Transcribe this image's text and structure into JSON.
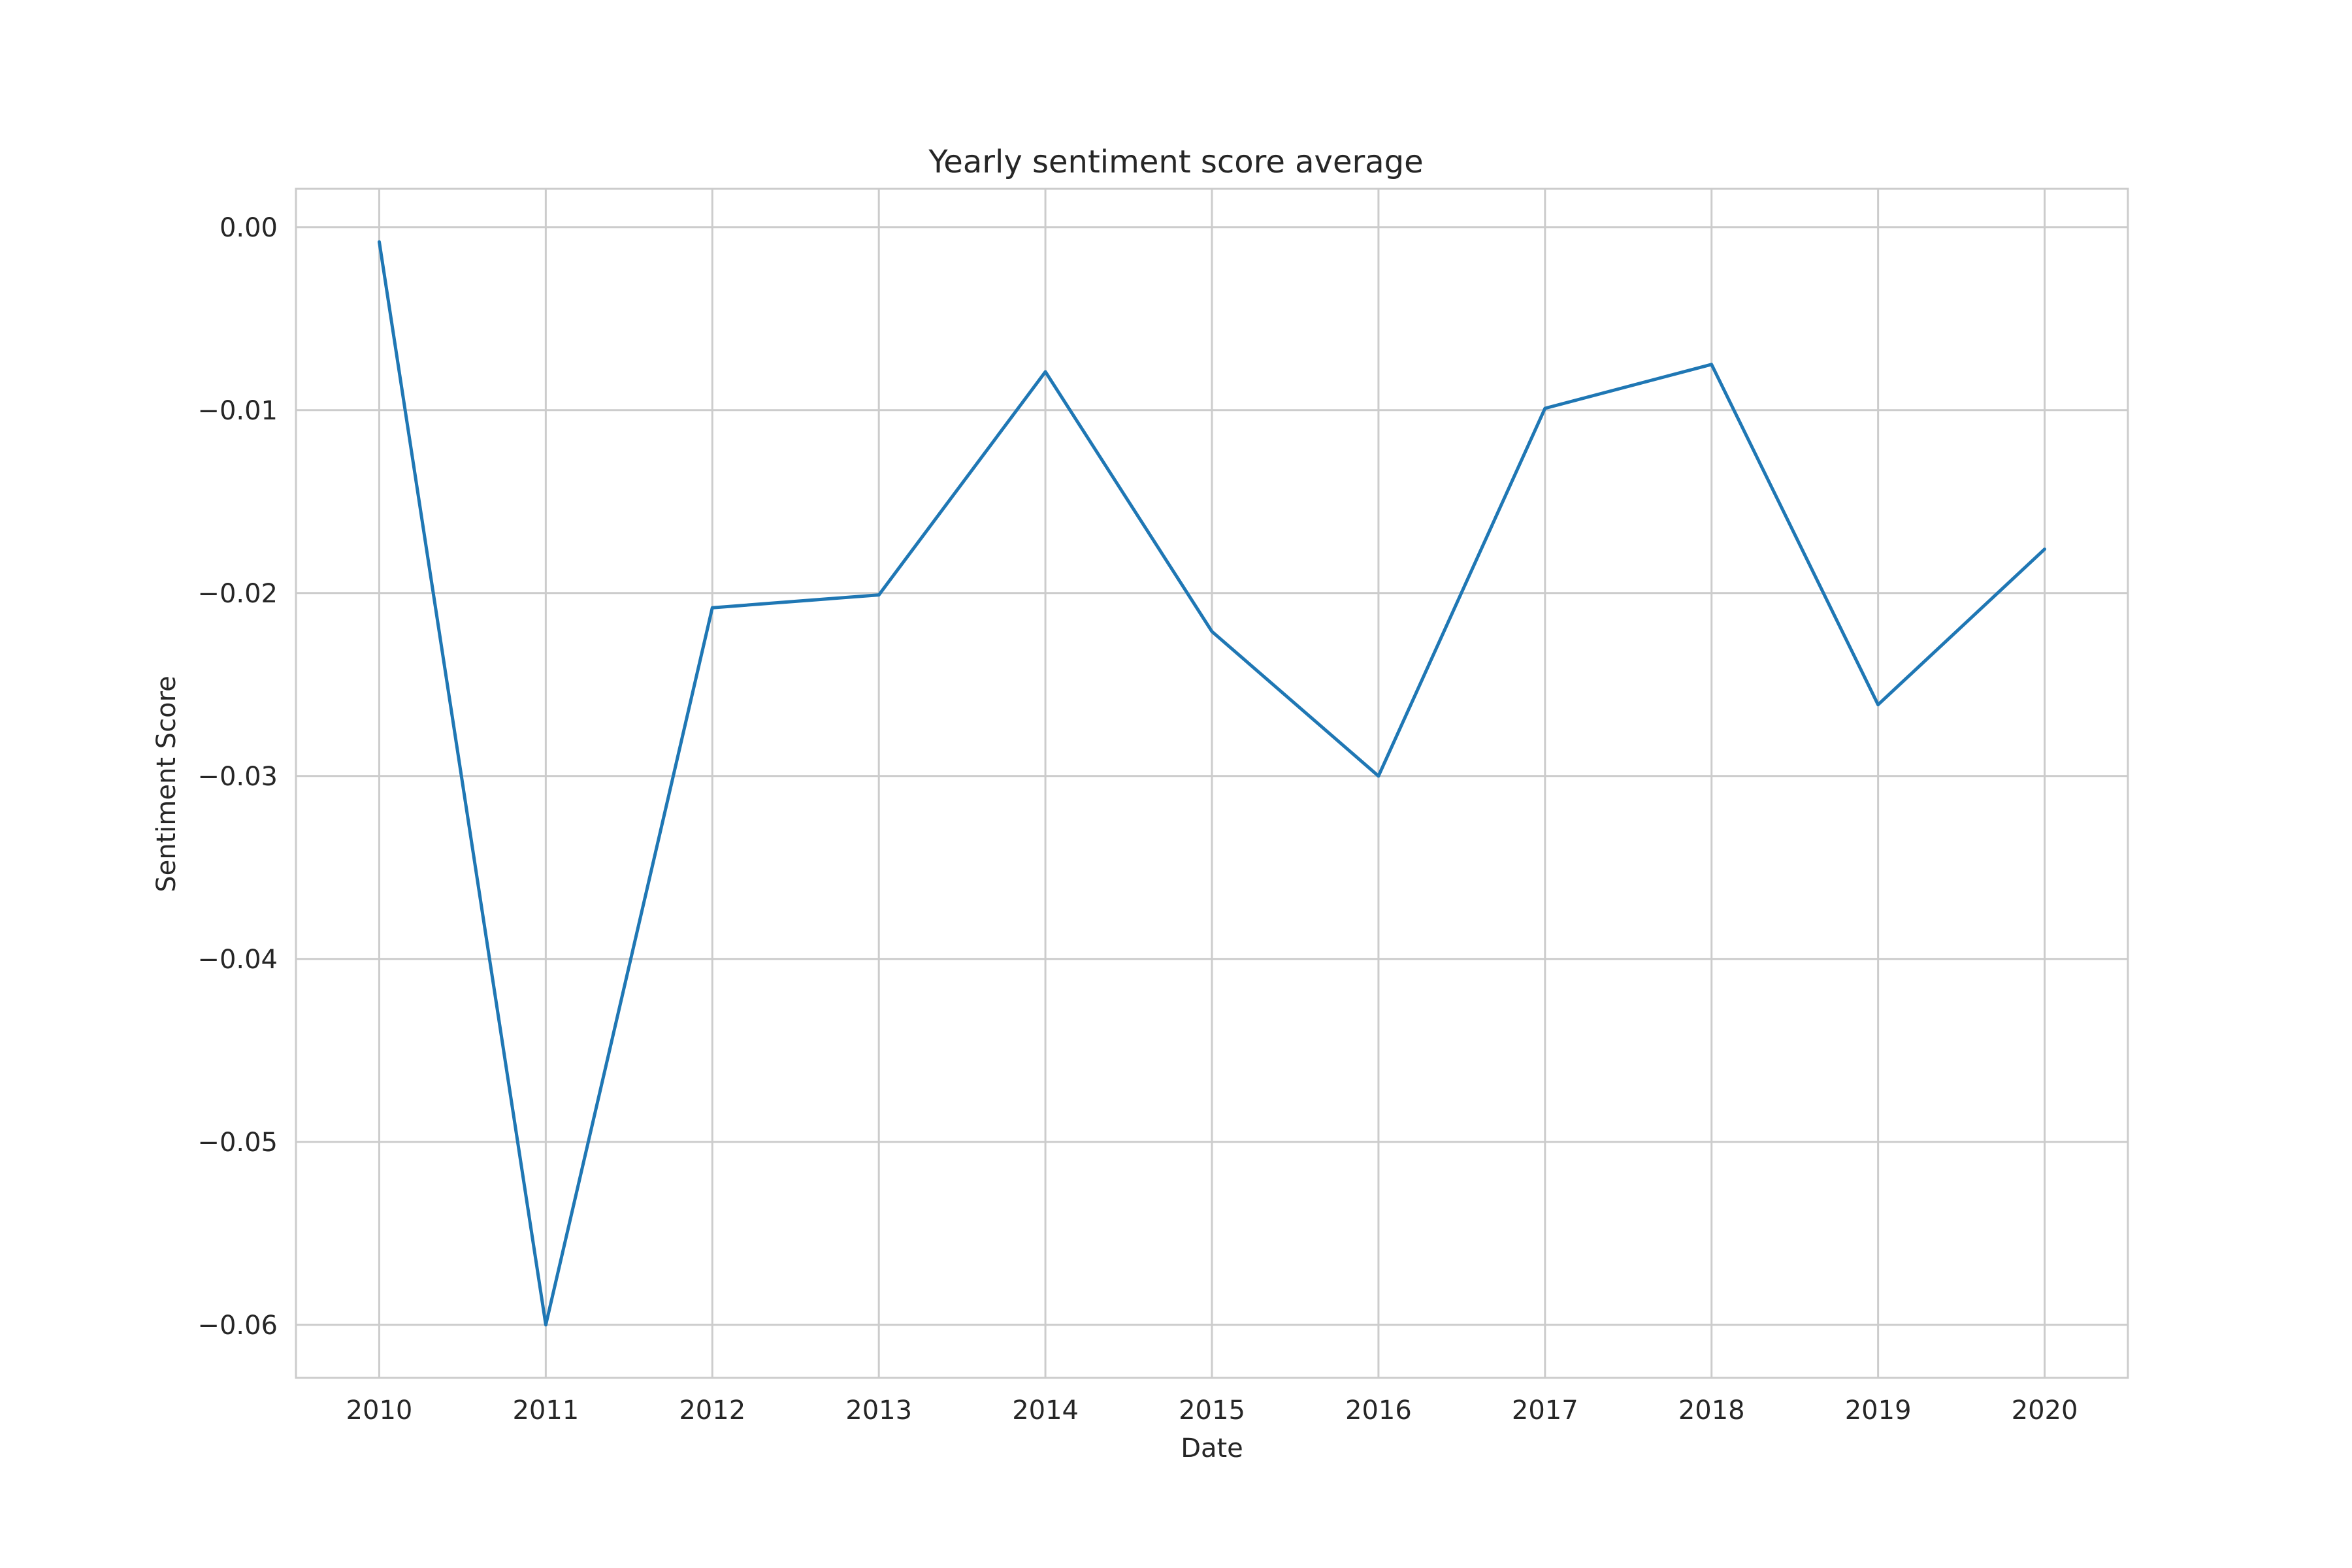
{
  "chart_data": {
    "type": "line",
    "title": "Yearly sentiment score average",
    "xlabel": "Date",
    "ylabel": "Sentiment Score",
    "x": [
      "2010",
      "2011",
      "2012",
      "2013",
      "2014",
      "2015",
      "2016",
      "2017",
      "2018",
      "2019",
      "2020"
    ],
    "series": [
      {
        "values": [
          -0.0008,
          -0.06,
          -0.0208,
          -0.0201,
          -0.0079,
          -0.0221,
          -0.03,
          -0.0099,
          -0.0075,
          -0.0261,
          -0.0176
        ]
      }
    ],
    "yticks": [
      0.0,
      -0.01,
      -0.02,
      -0.03,
      -0.04,
      -0.05,
      -0.06
    ],
    "ytick_labels": [
      "0.00",
      "−0.01",
      "−0.02",
      "−0.03",
      "−0.04",
      "−0.05",
      "−0.06"
    ],
    "ylim": [
      -0.0629,
      0.0021
    ],
    "xlim_pad_years": 0.5,
    "grid": true,
    "line_color": "#1f77b4",
    "grid_color": "#cccccc",
    "text_color": "#262626"
  }
}
